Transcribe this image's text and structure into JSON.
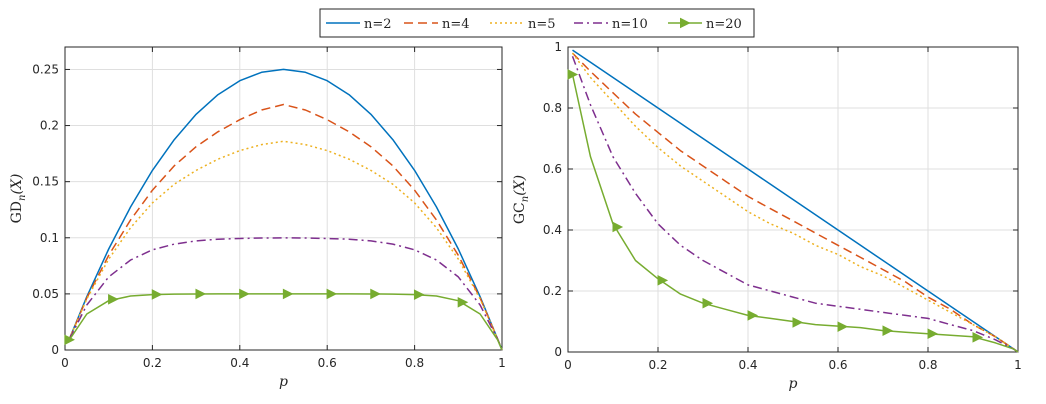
{
  "colors": {
    "n2": "#0072BD",
    "n4": "#D95319",
    "n5": "#EDB120",
    "n10": "#7E2F8E",
    "n20": "#77AC30"
  },
  "legend": {
    "entries": [
      {
        "key": "n2",
        "label": "n=2",
        "style": "solid",
        "marker": "none"
      },
      {
        "key": "n4",
        "label": "n=4",
        "style": "dashed",
        "marker": "none"
      },
      {
        "key": "n5",
        "label": "n=5",
        "style": "dotted",
        "marker": "none"
      },
      {
        "key": "n10",
        "label": "n=10",
        "style": "dashdot",
        "marker": "none"
      },
      {
        "key": "n20",
        "label": "n=20",
        "style": "solid",
        "marker": "triangle-right"
      }
    ],
    "placement": "top-center"
  },
  "chart_data": [
    {
      "type": "line",
      "title": "",
      "xlabel": "p",
      "ylabel_main": "GD",
      "ylabel_sub": "n",
      "ylabel_arg": "(X)",
      "xlim": [
        0,
        1
      ],
      "ylim": [
        0,
        0.27
      ],
      "xticks": [
        "0",
        "0.2",
        "0.4",
        "0.6",
        "0.8",
        "1"
      ],
      "xtick_values": [
        0,
        0.2,
        0.4,
        0.6,
        0.8,
        1
      ],
      "yticks": [
        "0",
        "0.05",
        "0.1",
        "0.15",
        "0.2",
        "0.25"
      ],
      "ytick_values": [
        0,
        0.05,
        0.1,
        0.15,
        0.2,
        0.25
      ],
      "grid": true,
      "x": [
        0.01,
        0.05,
        0.1,
        0.15,
        0.2,
        0.25,
        0.3,
        0.35,
        0.4,
        0.45,
        0.5,
        0.55,
        0.6,
        0.65,
        0.7,
        0.75,
        0.8,
        0.85,
        0.9,
        0.95,
        0.99,
        1.0
      ],
      "series": [
        {
          "key": "n2",
          "name": "n=2",
          "values": [
            0.0099,
            0.0475,
            0.09,
            0.1275,
            0.16,
            0.1875,
            0.21,
            0.2275,
            0.24,
            0.2475,
            0.25,
            0.2475,
            0.24,
            0.2275,
            0.21,
            0.1875,
            0.16,
            0.1275,
            0.09,
            0.0475,
            0.0099,
            0
          ]
        },
        {
          "key": "n4",
          "name": "n=4",
          "values": [
            0.0098,
            0.0463,
            0.0844,
            0.1159,
            0.1424,
            0.1641,
            0.1812,
            0.1944,
            0.2052,
            0.2139,
            0.2188,
            0.2139,
            0.2052,
            0.1944,
            0.1812,
            0.1641,
            0.1424,
            0.1159,
            0.0844,
            0.0463,
            0.0098,
            0
          ]
        },
        {
          "key": "n5",
          "name": "n=5",
          "values": [
            0.0098,
            0.0455,
            0.081,
            0.109,
            0.1311,
            0.1477,
            0.16,
            0.17,
            0.1777,
            0.183,
            0.186,
            0.183,
            0.1777,
            0.17,
            0.16,
            0.1477,
            0.1311,
            0.109,
            0.081,
            0.0455,
            0.0098,
            0
          ]
        },
        {
          "key": "n10",
          "name": "n=10",
          "values": [
            0.0096,
            0.0401,
            0.0651,
            0.0802,
            0.0893,
            0.0944,
            0.0972,
            0.0987,
            0.0994,
            0.0998,
            0.0999,
            0.0998,
            0.0994,
            0.0987,
            0.0972,
            0.0944,
            0.0893,
            0.0802,
            0.0651,
            0.0401,
            0.0096,
            0
          ]
        },
        {
          "key": "n20",
          "name": "n=20",
          "values": [
            0.0091,
            0.0321,
            0.0439,
            0.0481,
            0.0494,
            0.0498,
            0.0499,
            0.05,
            0.05,
            0.05,
            0.05,
            0.05,
            0.05,
            0.05,
            0.0499,
            0.0498,
            0.0494,
            0.0481,
            0.0439,
            0.0321,
            0.0091,
            0
          ],
          "markers_x": [
            0.01,
            0.11,
            0.21,
            0.31,
            0.41,
            0.51,
            0.61,
            0.71,
            0.81,
            0.91
          ],
          "markers_y": [
            0.0091,
            0.0452,
            0.0495,
            0.05,
            0.05,
            0.05,
            0.05,
            0.05,
            0.0493,
            0.0425
          ]
        }
      ]
    },
    {
      "type": "line",
      "title": "",
      "xlabel": "p",
      "ylabel_main": "GC",
      "ylabel_sub": "n",
      "ylabel_arg": "(X)",
      "xlim": [
        0,
        1
      ],
      "ylim": [
        0,
        1
      ],
      "xticks": [
        "0",
        "0.2",
        "0.4",
        "0.6",
        "0.8",
        "1"
      ],
      "xtick_values": [
        0,
        0.2,
        0.4,
        0.6,
        0.8,
        1
      ],
      "yticks": [
        "0",
        "0.2",
        "0.4",
        "0.6",
        "0.8",
        "1"
      ],
      "ytick_values": [
        0,
        0.2,
        0.4,
        0.6,
        0.8,
        1
      ],
      "grid": true,
      "x": [
        0.01,
        0.05,
        0.1,
        0.15,
        0.2,
        0.25,
        0.3,
        0.35,
        0.4,
        0.45,
        0.5,
        0.55,
        0.6,
        0.65,
        0.7,
        0.75,
        0.8,
        0.85,
        0.9,
        0.95,
        0.99,
        1.0
      ],
      "series": [
        {
          "key": "n2",
          "name": "n=2",
          "values": [
            0.99,
            0.95,
            0.9,
            0.85,
            0.8,
            0.75,
            0.7,
            0.65,
            0.6,
            0.55,
            0.5,
            0.45,
            0.4,
            0.35,
            0.3,
            0.25,
            0.2,
            0.15,
            0.1,
            0.05,
            0.01,
            0
          ]
        },
        {
          "key": "n4",
          "name": "n=4",
          "values": [
            0.98,
            0.92,
            0.85,
            0.78,
            0.72,
            0.66,
            0.61,
            0.56,
            0.51,
            0.47,
            0.43,
            0.39,
            0.35,
            0.31,
            0.27,
            0.23,
            0.18,
            0.14,
            0.09,
            0.05,
            0.01,
            0
          ]
        },
        {
          "key": "n5",
          "name": "n=5",
          "values": [
            0.98,
            0.9,
            0.82,
            0.74,
            0.67,
            0.61,
            0.56,
            0.51,
            0.46,
            0.42,
            0.39,
            0.35,
            0.32,
            0.28,
            0.25,
            0.21,
            0.17,
            0.13,
            0.09,
            0.05,
            0.01,
            0
          ]
        },
        {
          "key": "n10",
          "name": "n=10",
          "values": [
            0.97,
            0.81,
            0.64,
            0.52,
            0.42,
            0.35,
            0.3,
            0.26,
            0.22,
            0.2,
            0.18,
            0.16,
            0.15,
            0.14,
            0.13,
            0.12,
            0.11,
            0.09,
            0.07,
            0.04,
            0.01,
            0
          ]
        },
        {
          "key": "n20",
          "name": "n=20",
          "values": [
            0.91,
            0.64,
            0.42,
            0.3,
            0.24,
            0.19,
            0.16,
            0.14,
            0.12,
            0.11,
            0.1,
            0.09,
            0.085,
            0.08,
            0.07,
            0.065,
            0.06,
            0.055,
            0.05,
            0.03,
            0.01,
            0
          ],
          "markers_x": [
            0.01,
            0.11,
            0.21,
            0.31,
            0.41,
            0.51,
            0.61,
            0.71,
            0.81,
            0.91
          ],
          "markers_y": [
            0.91,
            0.41,
            0.235,
            0.16,
            0.12,
            0.097,
            0.083,
            0.07,
            0.06,
            0.048
          ]
        }
      ]
    }
  ]
}
